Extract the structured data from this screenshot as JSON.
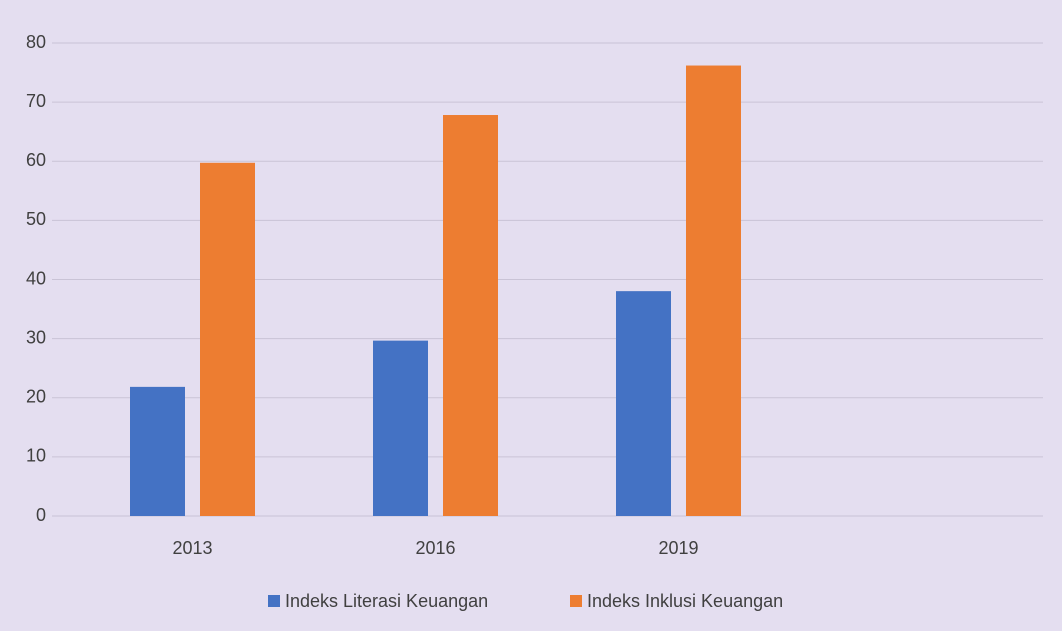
{
  "chart_data": {
    "type": "bar",
    "categories": [
      "2013",
      "2016",
      "2019",
      null
    ],
    "series": [
      {
        "name": "Indeks Literasi Keuangan",
        "color": "#4472c4",
        "values": [
          21.84,
          29.66,
          38.03,
          null
        ]
      },
      {
        "name": "Indeks Inklusi Keuangan",
        "color": "#ed7d31",
        "values": [
          59.74,
          67.82,
          76.19,
          null
        ]
      }
    ],
    "ylim": [
      0,
      80
    ],
    "yticks": [
      0,
      10,
      20,
      30,
      40,
      50,
      60,
      70,
      80
    ],
    "grid": true,
    "legend": "bottom"
  }
}
